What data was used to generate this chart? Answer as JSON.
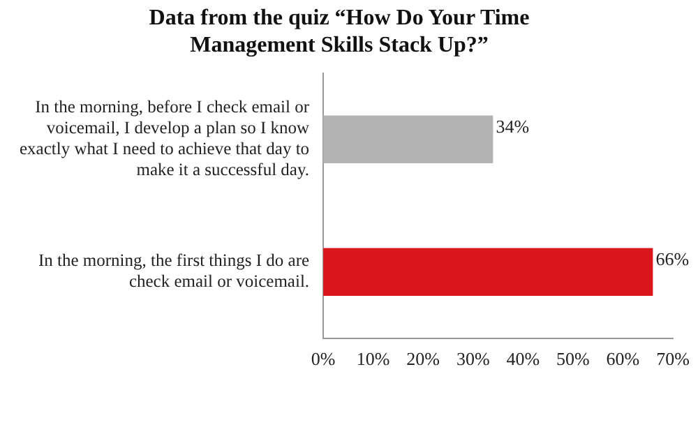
{
  "chart_data": {
    "type": "bar",
    "orientation": "horizontal",
    "title": "Data from the quiz “How Do Your Time Management Skills Stack Up?”",
    "categories": [
      "In the morning, before I check email or voicemail, I develop a plan so I know exactly what I need to achieve that day to make it a successful day.",
      "In the morning, the first things I do are check email or voicemail."
    ],
    "values": [
      34,
      66
    ],
    "colors": [
      "#b3b3b3",
      "#d8161c"
    ],
    "value_labels": [
      "34%",
      "66%"
    ],
    "xlim": [
      0,
      70
    ],
    "xticks": [
      {
        "value": 0,
        "label": "0%"
      },
      {
        "value": 10,
        "label": "10%"
      },
      {
        "value": 20,
        "label": "20%"
      },
      {
        "value": 30,
        "label": "30%"
      },
      {
        "value": 40,
        "label": "40%"
      },
      {
        "value": 50,
        "label": "50%"
      },
      {
        "value": 60,
        "label": "60%"
      },
      {
        "value": 70,
        "label": "70%"
      }
    ],
    "grid": false,
    "legend": false
  }
}
